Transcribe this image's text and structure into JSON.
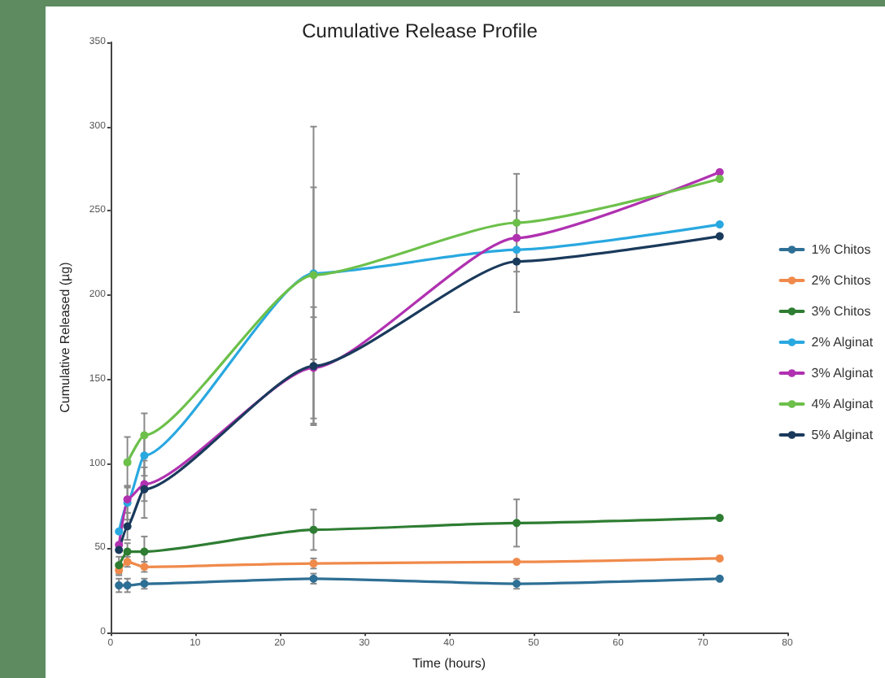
{
  "chart_data": {
    "type": "line",
    "title": "Cumulative Release Profile",
    "xlabel": "Time (hours)",
    "ylabel": "Cumulative Released (µg)",
    "x": [
      1,
      2,
      4,
      24,
      48,
      72
    ],
    "series": [
      {
        "name": "1% Chitos",
        "color": "#2e6f95",
        "values": [
          28,
          28,
          29,
          32,
          29,
          32
        ],
        "errors": [
          4,
          4,
          3,
          3,
          3,
          null
        ]
      },
      {
        "name": "2% Chitos",
        "color": "#f08a4b",
        "values": [
          37,
          42,
          39,
          41,
          42,
          44
        ],
        "errors": [
          3,
          3,
          3,
          3,
          null,
          null
        ]
      },
      {
        "name": "3% Chitos",
        "color": "#2e7d32",
        "values": [
          40,
          48,
          48,
          61,
          65,
          68
        ],
        "errors": [
          5,
          5,
          9,
          12,
          14,
          null
        ]
      },
      {
        "name": "2% Alginat",
        "color": "#29a8e0",
        "values": [
          60,
          77,
          105,
          213,
          227,
          242
        ],
        "errors": [
          null,
          10,
          12,
          51,
          null,
          null
        ]
      },
      {
        "name": "3% Alginat",
        "color": "#b031b0",
        "values": [
          52,
          79,
          88,
          157,
          234,
          273
        ],
        "errors": [
          null,
          8,
          10,
          30,
          null,
          null
        ]
      },
      {
        "name": "4% Alginat",
        "color": "#6cc04a",
        "values": [
          null,
          101,
          117,
          212,
          243,
          269
        ],
        "errors": [
          null,
          15,
          13,
          88,
          29,
          null
        ]
      },
      {
        "name": "5% Alginat",
        "color": "#1a3a5c",
        "values": [
          49,
          63,
          85,
          158,
          220,
          235
        ],
        "errors": [
          null,
          8,
          17,
          35,
          30,
          null
        ]
      }
    ],
    "xlim": [
      0,
      80
    ],
    "xticks": [
      0,
      10,
      20,
      30,
      40,
      50,
      60,
      70,
      80
    ],
    "ylim": [
      0,
      350
    ],
    "yticks": [
      0,
      50,
      100,
      150,
      200,
      250,
      300,
      350
    ],
    "grid": false,
    "legend": "right",
    "marker": "circle",
    "line_style": "solid"
  }
}
